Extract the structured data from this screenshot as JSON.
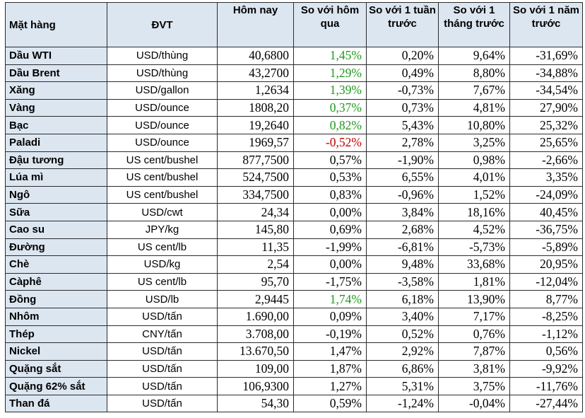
{
  "headers": [
    "Mặt hàng",
    "ĐVT",
    "Hôm nay",
    "So với hôm qua",
    "So với 1 tuần trước",
    "So với 1 tháng trước",
    "So với 1 năm trước"
  ],
  "colors": {
    "header_bg": "#dce6f1",
    "up": "#1f9a1f",
    "down": "#c00000",
    "border": "#2b2b2b"
  },
  "rows": [
    {
      "name": "Dầu WTI",
      "unit": "USD/thùng",
      "today": "40,6800",
      "day": "1,45%",
      "day_color": "up",
      "week": "0,20%",
      "month": "9,64%",
      "year": "-31,69%"
    },
    {
      "name": "Dầu Brent",
      "unit": "USD/thùng",
      "today": "43,2700",
      "day": "1,29%",
      "day_color": "up",
      "week": "0,49%",
      "month": "8,80%",
      "year": "-34,88%"
    },
    {
      "name": "Xăng",
      "unit": "USD/gallon",
      "today": "1,2634",
      "day": "1,39%",
      "day_color": "up",
      "week": "-0,73%",
      "month": "7,67%",
      "year": "-34,54%"
    },
    {
      "name": "Vàng",
      "unit": "USD/ounce",
      "today": "1808,20",
      "day": "0,37%",
      "day_color": "up",
      "week": "0,73%",
      "month": "4,81%",
      "year": "27,90%"
    },
    {
      "name": "Bạc",
      "unit": "USD/ounce",
      "today": "19,2640",
      "day": "0,82%",
      "day_color": "up",
      "week": "5,43%",
      "month": "10,80%",
      "year": "25,32%"
    },
    {
      "name": "Paladi",
      "unit": "USD/ounce",
      "today": "1969,57",
      "day": "-0,52%",
      "day_color": "down",
      "week": "2,78%",
      "month": "3,25%",
      "year": "25,65%"
    },
    {
      "name": "Đậu tương",
      "unit": "US cent/bushel",
      "today": "877,7500",
      "day": "0,57%",
      "day_color": "",
      "week": "-1,90%",
      "month": "0,98%",
      "year": "-2,66%"
    },
    {
      "name": "Lúa mì",
      "unit": "US cent/bushel",
      "today": "524,7500",
      "day": "0,53%",
      "day_color": "",
      "week": "6,55%",
      "month": "4,01%",
      "year": "3,35%"
    },
    {
      "name": "Ngô",
      "unit": "US cent/bushel",
      "today": "334,7500",
      "day": "0,83%",
      "day_color": "",
      "week": "-0,96%",
      "month": "1,52%",
      "year": "-24,09%"
    },
    {
      "name": "Sữa",
      "unit": "USD/cwt",
      "today": "24,34",
      "day": "0,00%",
      "day_color": "",
      "week": "3,84%",
      "month": "18,16%",
      "year": "40,45%"
    },
    {
      "name": "Cao su",
      "unit": "JPY/kg",
      "today": "145,80",
      "day": "0,69%",
      "day_color": "",
      "week": "2,68%",
      "month": "4,52%",
      "year": "-36,75%"
    },
    {
      "name": "Đường",
      "unit": "US cent/lb",
      "today": "11,35",
      "day": "-1,99%",
      "day_color": "",
      "week": "-6,81%",
      "month": "-5,73%",
      "year": "-5,89%"
    },
    {
      "name": "Chè",
      "unit": "USD/kg",
      "today": "2,54",
      "day": "0,00%",
      "day_color": "",
      "week": "9,48%",
      "month": "33,68%",
      "year": "20,95%"
    },
    {
      "name": "Càphê",
      "unit": "US cent/lb",
      "today": "95,70",
      "day": "-1,75%",
      "day_color": "",
      "week": "-3,58%",
      "month": "1,81%",
      "year": "-12,04%"
    },
    {
      "name": "Đồng",
      "unit": "USD/lb",
      "today": "2,9445",
      "day": "1,74%",
      "day_color": "up",
      "week": "6,18%",
      "month": "13,90%",
      "year": "8,77%"
    },
    {
      "name": "Nhôm",
      "unit": "USD/tấn",
      "today": "1.690,00",
      "day": "0,09%",
      "day_color": "",
      "week": "3,40%",
      "month": "7,17%",
      "year": "-8,25%"
    },
    {
      "name": "Thép",
      "unit": "CNY/tấn",
      "today": "3.708,00",
      "day": "-0,19%",
      "day_color": "",
      "week": "0,52%",
      "month": "0,76%",
      "year": "-1,12%"
    },
    {
      "name": "Nickel",
      "unit": "USD/tấn",
      "today": "13.670,50",
      "day": "1,47%",
      "day_color": "",
      "week": "2,92%",
      "month": "7,87%",
      "year": "0,56%"
    },
    {
      "name": "Quặng sắt",
      "unit": "USD/tấn",
      "today": "109,00",
      "day": "1,87%",
      "day_color": "",
      "week": "6,86%",
      "month": "3,81%",
      "year": "-9,92%"
    },
    {
      "name": "Quặng 62% sắt",
      "unit": "USD/tấn",
      "today": "106,9300",
      "day": "1,27%",
      "day_color": "",
      "week": "5,31%",
      "month": "3,75%",
      "year": "-11,76%"
    },
    {
      "name": "Than đá",
      "unit": "USD/tấn",
      "today": "54,30",
      "day": "0,59%",
      "day_color": "",
      "week": "-1,24%",
      "month": "-0,04%",
      "year": "-27,44%"
    }
  ]
}
